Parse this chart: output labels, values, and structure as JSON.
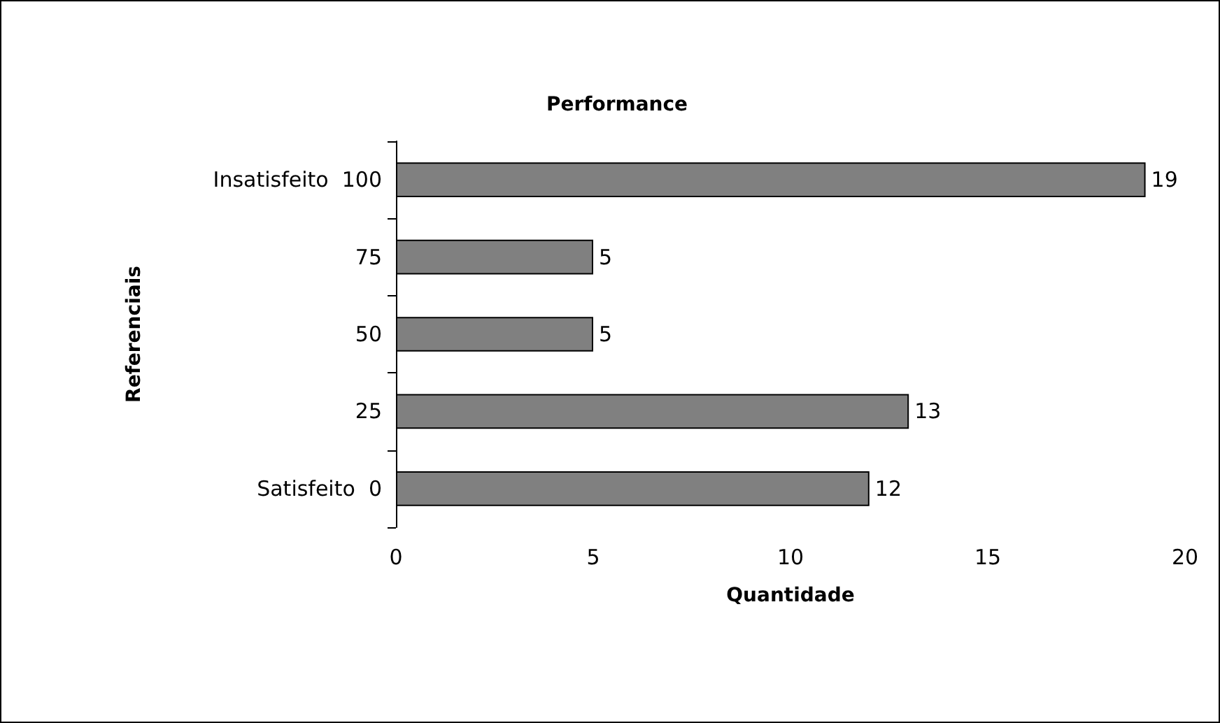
{
  "chart_data": {
    "type": "bar",
    "orientation": "horizontal",
    "title": "Performance",
    "xlabel": "Quantidade",
    "ylabel": "Referenciais",
    "categories": [
      "Insatisfeito  100",
      "75",
      "50",
      "25",
      "Satisfeito  0"
    ],
    "values": [
      19,
      5,
      5,
      13,
      12
    ],
    "color": "#808080",
    "xlim": [
      0,
      20
    ],
    "xticks": [
      0,
      5,
      10,
      15,
      20
    ],
    "grid": false,
    "data_labels": true
  }
}
